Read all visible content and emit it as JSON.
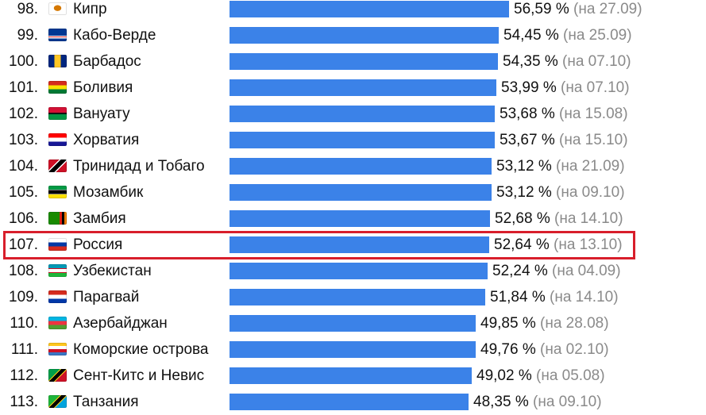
{
  "chart_data": {
    "type": "bar",
    "orientation": "horizontal",
    "unit": "%",
    "highlighted_rank": "107.",
    "colors": {
      "bar": "#3b82e8",
      "highlight": "#d81e2b",
      "date": "#8a8a8a"
    },
    "rows": [
      {
        "rank": "98.",
        "country": "Кипр",
        "value": 56.59,
        "value_label": "56,59 %",
        "date": "(на 27.09)",
        "flag": "cyprus-flag"
      },
      {
        "rank": "99.",
        "country": "Кабо-Верде",
        "value": 54.45,
        "value_label": "54,45 %",
        "date": "(на 25.09)",
        "flag": "cape-verde-flag"
      },
      {
        "rank": "100.",
        "country": "Барбадос",
        "value": 54.35,
        "value_label": "54,35 %",
        "date": "(на 07.10)",
        "flag": "barbados-flag"
      },
      {
        "rank": "101.",
        "country": "Боливия",
        "value": 53.99,
        "value_label": "53,99 %",
        "date": "(на 07.10)",
        "flag": "bolivia-flag"
      },
      {
        "rank": "102.",
        "country": "Вануату",
        "value": 53.68,
        "value_label": "53,68 %",
        "date": "(на 15.08)",
        "flag": "vanuatu-flag"
      },
      {
        "rank": "103.",
        "country": "Хорватия",
        "value": 53.67,
        "value_label": "53,67 %",
        "date": "(на 15.10)",
        "flag": "croatia-flag"
      },
      {
        "rank": "104.",
        "country": "Тринидад и Тобаго",
        "value": 53.12,
        "value_label": "53,12 %",
        "date": "(на 21.09)",
        "flag": "trinidad-and-tobago-flag"
      },
      {
        "rank": "105.",
        "country": "Мозамбик",
        "value": 53.12,
        "value_label": "53,12 %",
        "date": "(на 09.10)",
        "flag": "mozambique-flag"
      },
      {
        "rank": "106.",
        "country": "Замбия",
        "value": 52.68,
        "value_label": "52,68 %",
        "date": "(на 14.10)",
        "flag": "zambia-flag"
      },
      {
        "rank": "107.",
        "country": "Россия",
        "value": 52.64,
        "value_label": "52,64 %",
        "date": "(на 13.10)",
        "flag": "russia-flag"
      },
      {
        "rank": "108.",
        "country": "Узбекистан",
        "value": 52.24,
        "value_label": "52,24 %",
        "date": "(на 04.09)",
        "flag": "uzbekistan-flag"
      },
      {
        "rank": "109.",
        "country": "Парагвай",
        "value": 51.84,
        "value_label": "51,84 %",
        "date": "(на 14.10)",
        "flag": "paraguay-flag"
      },
      {
        "rank": "110.",
        "country": "Азербайджан",
        "value": 49.85,
        "value_label": "49,85 %",
        "date": "(на 28.08)",
        "flag": "azerbaijan-flag"
      },
      {
        "rank": "111.",
        "country": "Коморские острова",
        "value": 49.76,
        "value_label": "49,76 %",
        "date": "(на 02.10)",
        "flag": "comoros-flag"
      },
      {
        "rank": "112.",
        "country": "Сент-Китс и Невис",
        "value": 49.02,
        "value_label": "49,02 %",
        "date": "(на 05.08)",
        "flag": "saint-kitts-and-nevis-flag"
      },
      {
        "rank": "113.",
        "country": "Танзания",
        "value": 48.35,
        "value_label": "48,35 %",
        "date": "(на 09.10)",
        "flag": "tanzania-flag"
      }
    ]
  }
}
